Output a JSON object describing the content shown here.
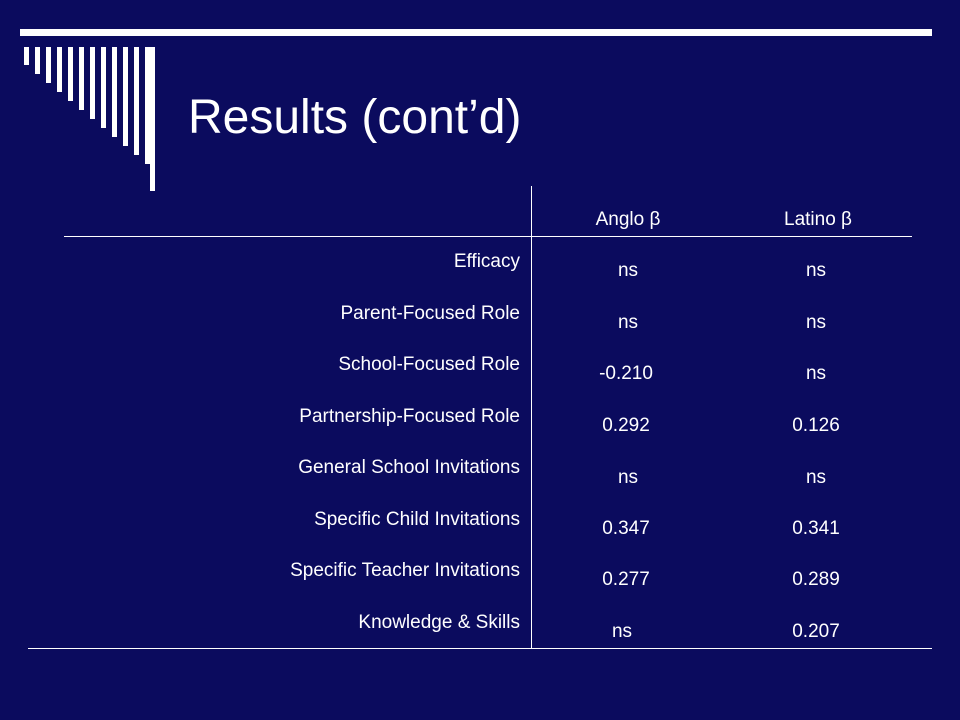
{
  "title": "Results (cont’d)",
  "colors": {
    "background": "#0b0b5e",
    "text": "#ffffff",
    "rule": "#ffffff"
  },
  "table": {
    "headers": [
      "Anglo β",
      "Latino β"
    ],
    "rows": [
      {
        "label": "Efficacy",
        "anglo": "ns",
        "latino": "ns"
      },
      {
        "label": "Parent-Focused Role",
        "anglo": "ns",
        "latino": "ns"
      },
      {
        "label": "School-Focused Role",
        "anglo": "-0.210",
        "latino": "ns"
      },
      {
        "label": "Partnership-Focused Role",
        "anglo": "0.292",
        "latino": "0.126"
      },
      {
        "label": "General School Invitations",
        "anglo": "ns",
        "latino": "ns"
      },
      {
        "label": "Specific Child Invitations",
        "anglo": "0.347",
        "latino": "0.341"
      },
      {
        "label": "Specific Teacher Invitations",
        "anglo": "0.277",
        "latino": "0.289"
      },
      {
        "label": "Knowledge & Skills",
        "anglo": "ns",
        "latino": "0.207"
      }
    ]
  }
}
